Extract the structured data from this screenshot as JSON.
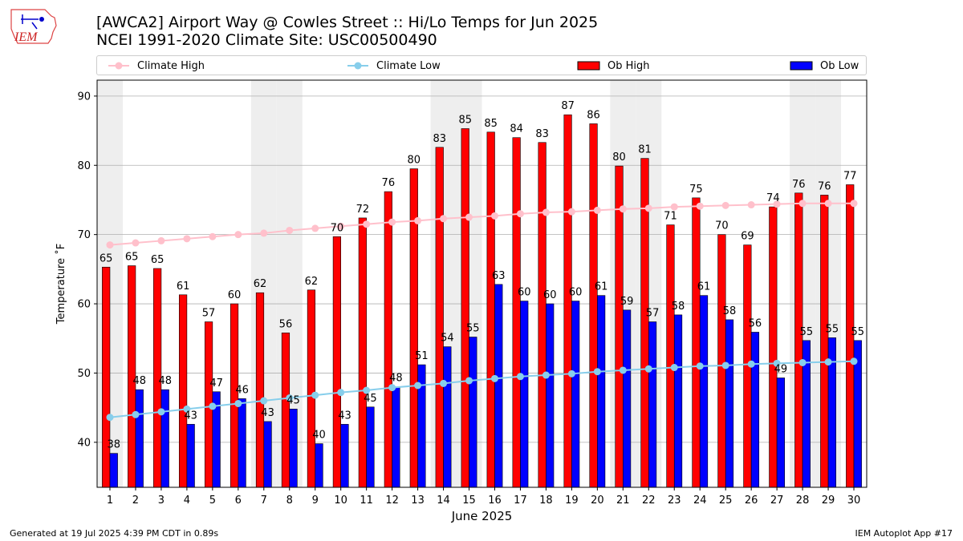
{
  "header": {
    "title_line1": "[AWCA2] Airport Way @ Cowles Street :: Hi/Lo Temps for Jun 2025",
    "title_line2": "NCEI 1991-2020 Climate Site: USC00500490"
  },
  "logo": {
    "text": "IEM"
  },
  "legend": {
    "climate_high": "Climate High",
    "climate_low": "Climate Low",
    "ob_high": "Ob High",
    "ob_low": "Ob Low"
  },
  "colors": {
    "ob_high": "#ff0000",
    "ob_low": "#0000ff",
    "climate_high": "#ffc0cb",
    "climate_low": "#87ceeb",
    "weekend_band": "#eeeeee",
    "grid": "#b0b0b0"
  },
  "footer": {
    "left": "Generated at 19 Jul 2025 4:39 PM CDT in 0.89s",
    "right": "IEM Autoplot App #17"
  },
  "chart_data": {
    "type": "bar",
    "xlabel": "June 2025",
    "ylabel": "Temperature ˚F",
    "ylim": [
      33.5,
      92.3
    ],
    "yticks": [
      40,
      50,
      60,
      70,
      80,
      90
    ],
    "grid": "horizontal",
    "legend_position": "top",
    "categories": [
      "1",
      "2",
      "3",
      "4",
      "5",
      "6",
      "7",
      "8",
      "9",
      "10",
      "11",
      "12",
      "13",
      "14",
      "15",
      "16",
      "17",
      "18",
      "19",
      "20",
      "21",
      "22",
      "23",
      "24",
      "25",
      "26",
      "27",
      "28",
      "29",
      "30"
    ],
    "shaded_days": [
      1,
      7,
      8,
      14,
      15,
      21,
      22,
      28,
      29
    ],
    "series": [
      {
        "name": "Ob High",
        "kind": "bar",
        "values": [
          65.3,
          65.5,
          65.1,
          61.3,
          57.4,
          60.0,
          61.6,
          55.8,
          62.0,
          69.7,
          72.4,
          76.2,
          79.5,
          82.6,
          85.3,
          84.8,
          84.0,
          83.3,
          87.3,
          86.0,
          79.9,
          81.0,
          71.4,
          75.3,
          70.0,
          68.5,
          74.0,
          76.0,
          75.7,
          77.2
        ],
        "labels": [
          "65",
          "65",
          "65",
          "61",
          "57",
          "60",
          "62",
          "56",
          "62",
          "70",
          "72",
          "76",
          "80",
          "83",
          "85",
          "85",
          "84",
          "83",
          "87",
          "86",
          "80",
          "81",
          "71",
          "75",
          "70",
          "69",
          "74",
          "76",
          "76",
          "77"
        ]
      },
      {
        "name": "Ob Low",
        "kind": "bar",
        "values": [
          38.4,
          47.6,
          47.6,
          42.6,
          47.3,
          46.3,
          43.0,
          44.8,
          39.8,
          42.6,
          45.1,
          48.0,
          51.2,
          53.8,
          55.2,
          62.8,
          60.4,
          60.0,
          60.4,
          61.2,
          59.1,
          57.4,
          58.4,
          61.2,
          57.7,
          55.9,
          49.3,
          54.7,
          55.1,
          54.7
        ],
        "labels": [
          "38",
          "48",
          "48",
          "43",
          "47",
          "46",
          "43",
          "45",
          "40",
          "43",
          "45",
          "48",
          "51",
          "54",
          "55",
          "63",
          "60",
          "60",
          "60",
          "61",
          "59",
          "57",
          "58",
          "61",
          "58",
          "56",
          "49",
          "55",
          "55",
          "55"
        ]
      },
      {
        "name": "Climate High",
        "kind": "line",
        "values": [
          68.5,
          68.8,
          69.1,
          69.4,
          69.7,
          70.0,
          70.2,
          70.6,
          70.9,
          71.2,
          71.5,
          71.8,
          72.0,
          72.3,
          72.5,
          72.7,
          73.0,
          73.2,
          73.3,
          73.5,
          73.7,
          73.8,
          74.0,
          74.1,
          74.2,
          74.3,
          74.4,
          74.5,
          74.5,
          74.5
        ]
      },
      {
        "name": "Climate Low",
        "kind": "line",
        "values": [
          43.6,
          44.0,
          44.4,
          44.8,
          45.2,
          45.6,
          46.0,
          46.4,
          46.8,
          47.2,
          47.5,
          47.9,
          48.2,
          48.5,
          48.9,
          49.2,
          49.5,
          49.7,
          49.9,
          50.2,
          50.4,
          50.6,
          50.8,
          51.0,
          51.1,
          51.3,
          51.4,
          51.5,
          51.6,
          51.7
        ]
      }
    ]
  }
}
